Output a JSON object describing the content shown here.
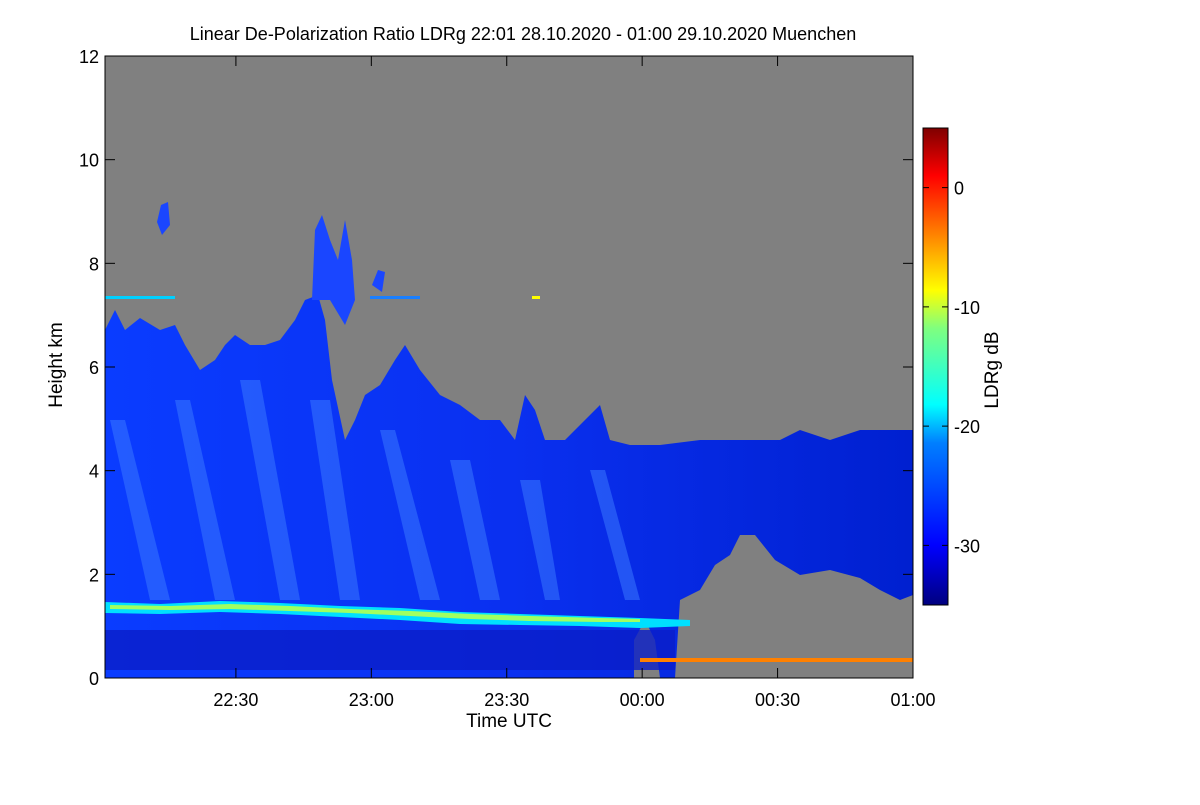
{
  "chart_data": {
    "type": "heatmap",
    "title": "Linear De-Polarization Ratio LDRg   22:01 28.10.2020 - 01:00 29.10.2020 Muenchen",
    "xlabel": "Time UTC",
    "ylabel": "Height km",
    "colorbar_label": "LDRg dB",
    "x_range": [
      "22:01",
      "01:00"
    ],
    "x_ticks": [
      "22:30",
      "23:00",
      "23:30",
      "00:00",
      "00:30",
      "01:00"
    ],
    "y_range": [
      0,
      12
    ],
    "y_ticks": [
      "0",
      "2",
      "4",
      "6",
      "8",
      "10",
      "12"
    ],
    "colorbar_range": [
      -35,
      5
    ],
    "colorbar_ticks": [
      "0",
      "-10",
      "-20",
      "-30"
    ],
    "no_data_color": "#808080",
    "colormap": [
      "#00007f",
      "#0000ff",
      "#007fff",
      "#00ffff",
      "#7fff7f",
      "#ffff00",
      "#ff7f00",
      "#ff0000",
      "#7f0000"
    ],
    "features": [
      {
        "name": "cloud base layer",
        "time_from": "22:01",
        "time_to": "00:10",
        "height_km": [
          0.0,
          7.2
        ],
        "ldr_db": -31
      },
      {
        "name": "melting layer band",
        "time_from": "22:01",
        "time_to": "00:10",
        "height_km": 1.2,
        "ldr_db": -20
      },
      {
        "name": "cloud top after midnight",
        "time_from": "00:00",
        "time_to": "01:00",
        "height_km": 4.3
      },
      {
        "name": "low level surface band",
        "time_from": "00:08",
        "time_to": "01:00",
        "height_km": 0.3,
        "ldr_db": 0
      },
      {
        "name": "high level artifact line",
        "time_from": "22:01",
        "time_to": "23:35",
        "height_km": 7.3,
        "ldr_db": -25
      }
    ]
  }
}
